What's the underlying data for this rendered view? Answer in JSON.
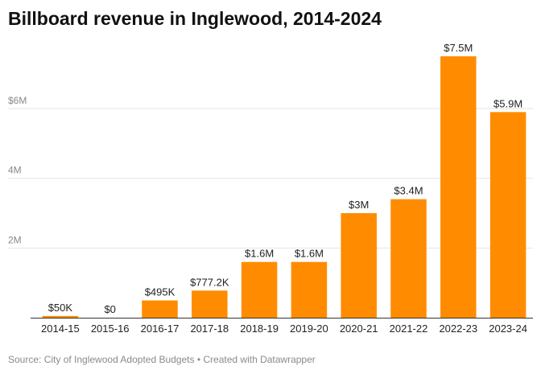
{
  "title": "Billboard revenue in Inglewood, 2014-2024",
  "footer": {
    "source": "Source: City of Inglewood Adopted Budgets",
    "separator": " • ",
    "credit": "Created with Datawrapper"
  },
  "colors": {
    "bar": "#ff8c00",
    "grid": "#e6e6e6",
    "axis": "#333333"
  },
  "chart_data": {
    "type": "bar",
    "title": "Billboard revenue in Inglewood, 2014-2024",
    "xlabel": "",
    "ylabel": "",
    "ylim": [
      0,
      7500000
    ],
    "yticks": [
      {
        "value": 2000000,
        "label": "2M"
      },
      {
        "value": 4000000,
        "label": "4M"
      },
      {
        "value": 6000000,
        "label": "$6M"
      }
    ],
    "grid": true,
    "categories": [
      "2014-15",
      "2015-16",
      "2016-17",
      "2017-18",
      "2018-19",
      "2019-20",
      "2020-21",
      "2021-22",
      "2022-23",
      "2023-24"
    ],
    "values": [
      50000,
      0,
      495000,
      777200,
      1600000,
      1600000,
      3000000,
      3400000,
      7500000,
      5900000
    ],
    "value_labels": [
      "$50K",
      "$0",
      "$495K",
      "$777.2K",
      "$1.6M",
      "$1.6M",
      "$3M",
      "$3.4M",
      "$7.5M",
      "$5.9M"
    ]
  }
}
